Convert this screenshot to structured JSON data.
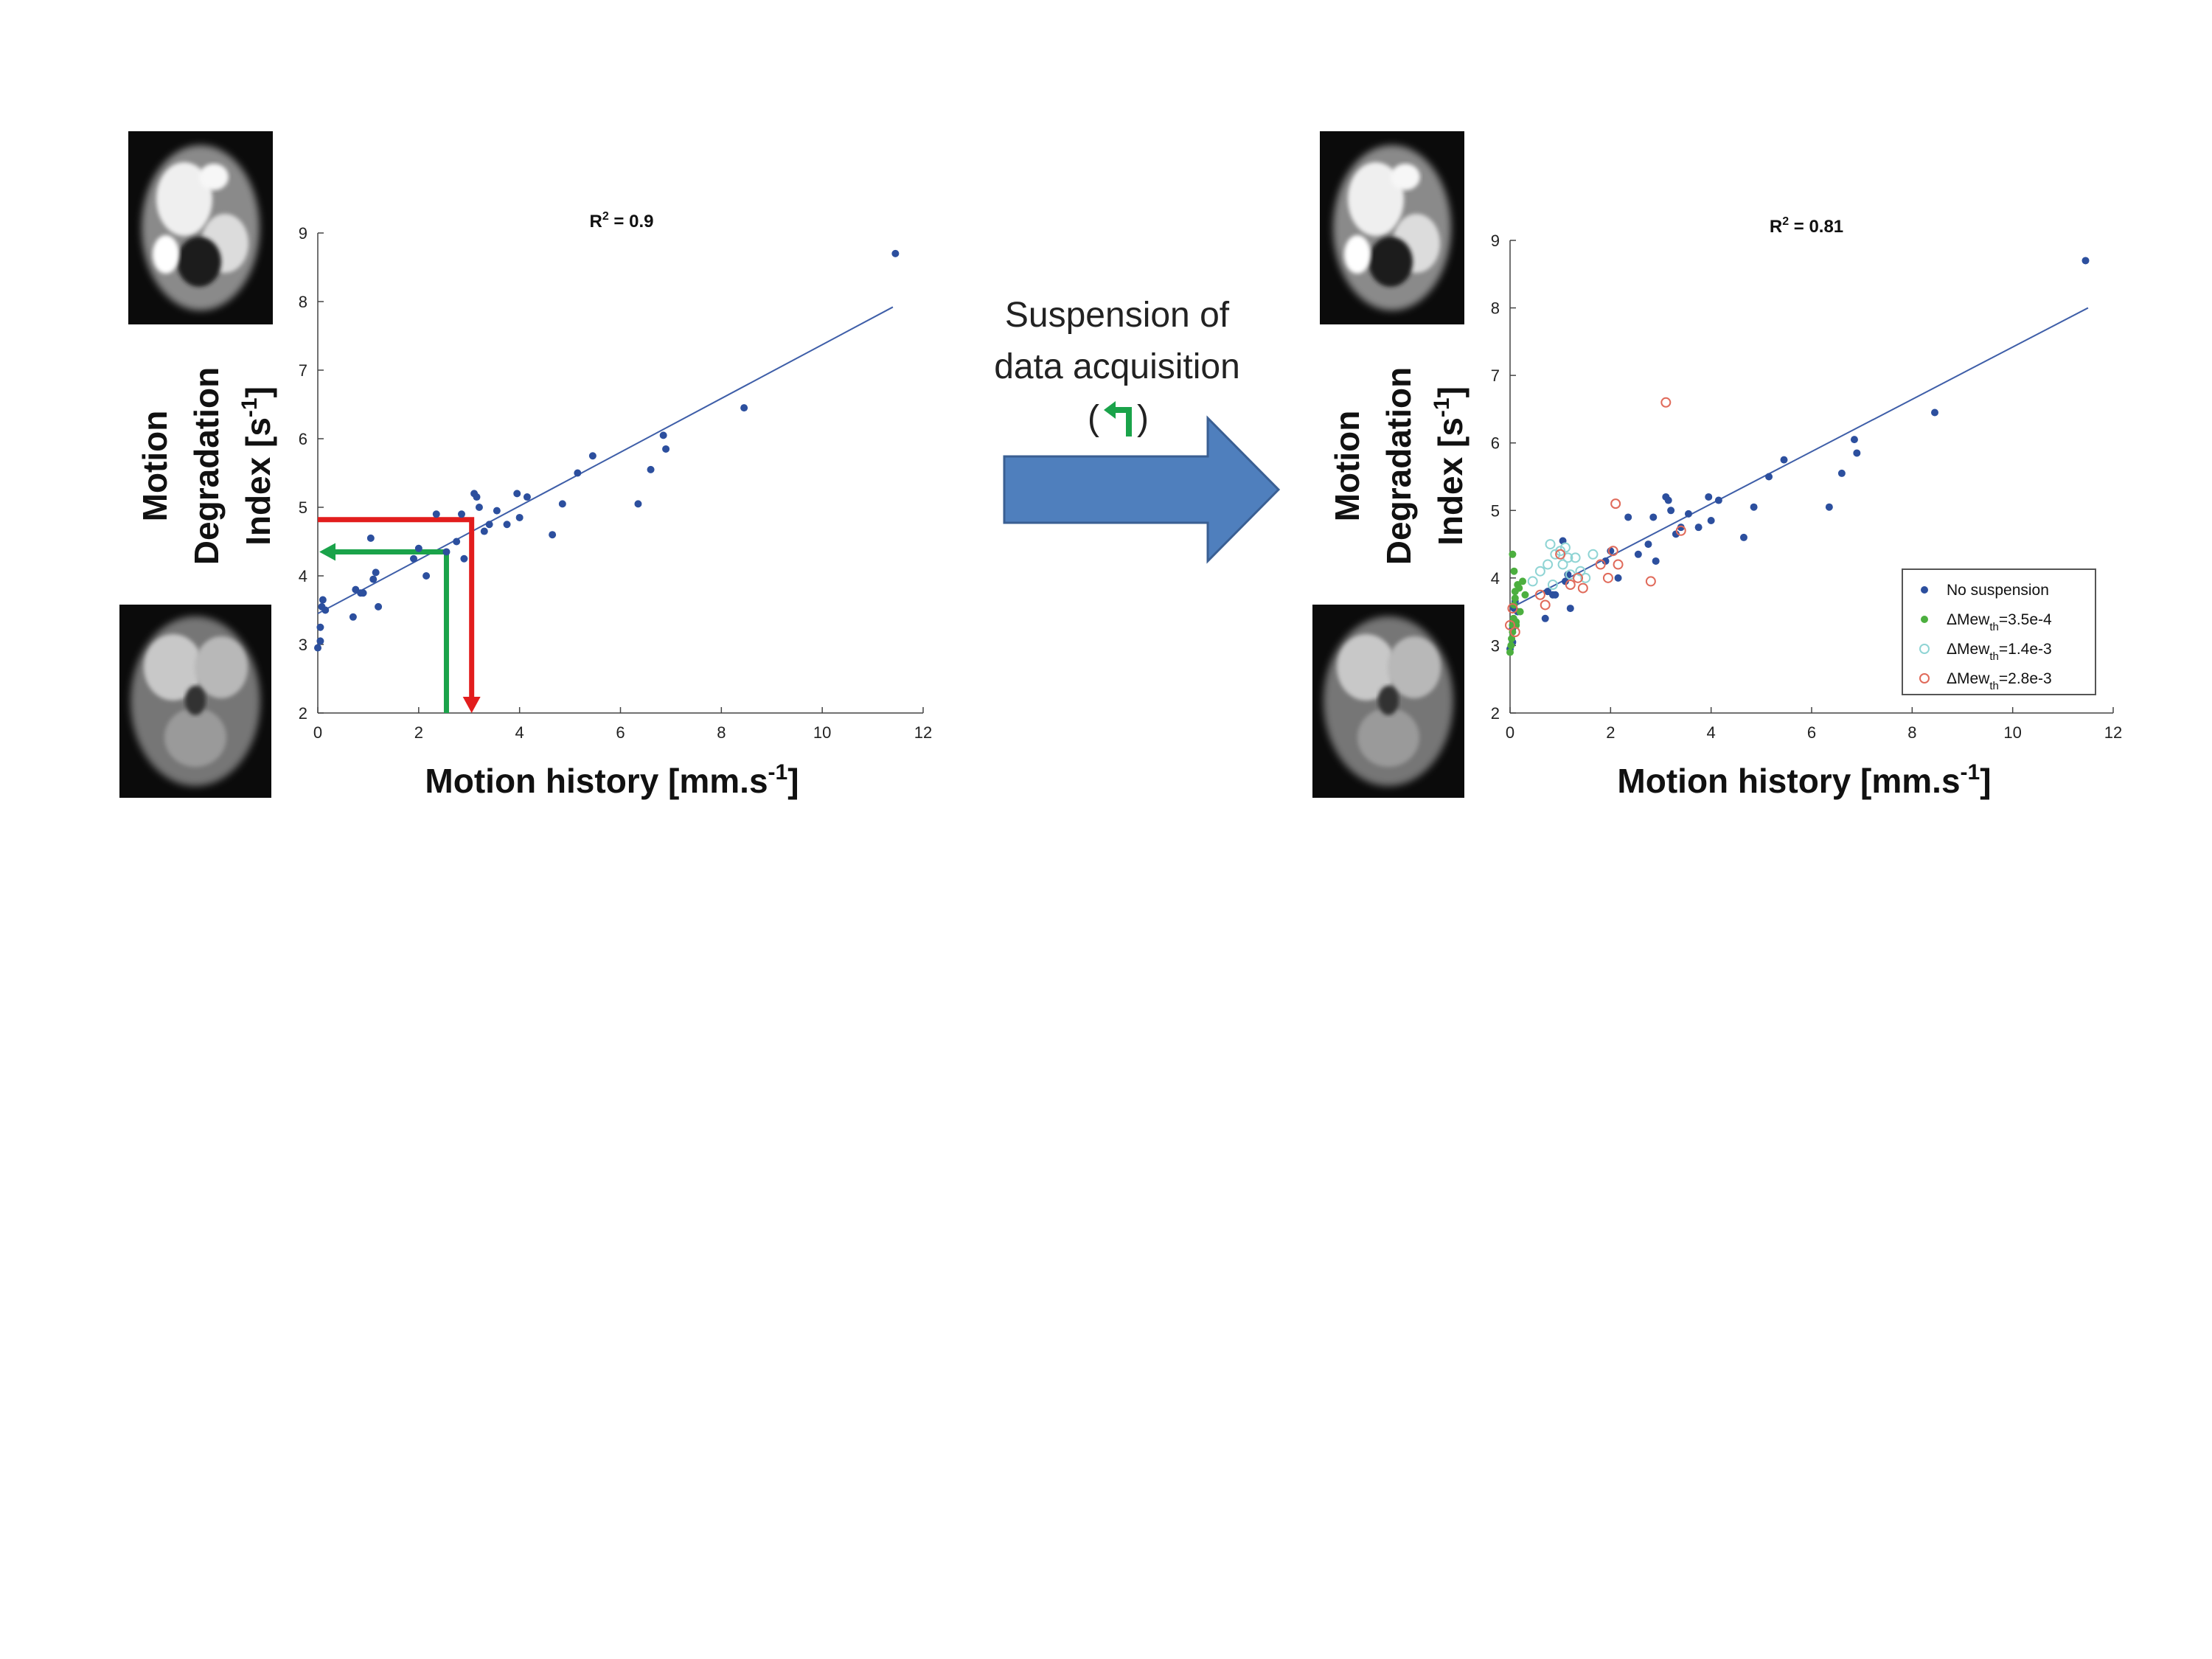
{
  "colors": {
    "series_blue": "#2c4f9e",
    "series_green": "#4caf3f",
    "series_cyan": "#8fd4d4",
    "series_red": "#e06a5a",
    "fit_line": "#3e5ea8",
    "arrow_red": "#e21d1d",
    "arrow_green": "#1aa34a",
    "big_arrow": "#4f7fbd"
  },
  "middle": {
    "line1": "Suspension of",
    "line2": "data acquisition",
    "paren_open": "(",
    "paren_close": ")",
    "icon": "green-turn-left-arrow-icon"
  },
  "chart_data": [
    {
      "type": "scatter",
      "title": "R² = 0.9",
      "title_main": "R",
      "title_sup": "2",
      "title_rest": " = 0.9",
      "xlabel": "Motion history [mm.s⁻¹]",
      "ylabel": "Motion Degradation Index [s⁻¹]",
      "xlabel_main": "Motion history [mm.s",
      "xlabel_sup": "-1",
      "xlabel_end": "]",
      "ylabel_line1": "Motion",
      "ylabel_line2": "Degradation",
      "ylabel_line3_main": "Index [s",
      "ylabel_line3_sup": "-1",
      "ylabel_line3_end": "]",
      "xlim": [
        0,
        12
      ],
      "ylim": [
        2,
        9
      ],
      "xticks": [
        "0",
        "2",
        "4",
        "6",
        "8",
        "10",
        "12"
      ],
      "yticks": [
        "2",
        "3",
        "4",
        "5",
        "6",
        "7",
        "8",
        "9"
      ],
      "fit_line": {
        "x": [
          0,
          11.4
        ],
        "y": [
          3.45,
          7.92
        ]
      },
      "annotations": {
        "red_arrow": {
          "x": 3.05,
          "y": 4.82
        },
        "green_arrow": {
          "x": 2.55,
          "y": 4.35
        }
      },
      "series": [
        {
          "color": "#2c4f9e",
          "style": "filled",
          "x": [
            0.0,
            0.05,
            0.05,
            0.08,
            0.1,
            0.15,
            0.7,
            0.75,
            0.85,
            0.9,
            1.05,
            1.1,
            1.15,
            1.2,
            1.9,
            2.0,
            2.15,
            2.35,
            2.55,
            2.75,
            2.85,
            2.9,
            3.1,
            3.15,
            3.2,
            3.3,
            3.4,
            3.55,
            3.75,
            3.95,
            4.0,
            4.15,
            4.65,
            4.85,
            5.15,
            5.45,
            6.35,
            6.6,
            6.85,
            6.9,
            8.45,
            11.45
          ],
          "y": [
            2.95,
            3.05,
            3.25,
            3.55,
            3.65,
            3.5,
            3.4,
            3.8,
            3.75,
            3.75,
            4.55,
            3.95,
            4.05,
            3.55,
            4.25,
            4.4,
            4.0,
            4.9,
            4.35,
            4.5,
            4.9,
            4.25,
            5.2,
            5.15,
            5.0,
            4.65,
            4.75,
            4.95,
            4.75,
            5.2,
            4.85,
            5.15,
            4.6,
            5.05,
            5.5,
            5.75,
            5.05,
            5.55,
            6.05,
            5.85,
            6.45,
            8.7
          ]
        }
      ]
    },
    {
      "type": "scatter",
      "title": "R² = 0.81",
      "title_main": "R",
      "title_sup": "2",
      "title_rest": " = 0.81",
      "xlabel": "Motion history [mm.s⁻¹]",
      "ylabel": "Motion Degradation Index [s⁻¹]",
      "xlabel_main": "Motion history [mm.s",
      "xlabel_sup": "-1",
      "xlabel_end": "]",
      "ylabel_line1": "Motion",
      "ylabel_line2": "Degradation",
      "ylabel_line3_main": "Index [s",
      "ylabel_line3_sup": "-1",
      "ylabel_line3_end": "]",
      "xlim": [
        0,
        12
      ],
      "ylim": [
        2,
        9
      ],
      "xticks": [
        "0",
        "2",
        "4",
        "6",
        "8",
        "10",
        "12"
      ],
      "yticks": [
        "2",
        "3",
        "4",
        "5",
        "6",
        "7",
        "8",
        "9"
      ],
      "fit_line": {
        "x": [
          0,
          11.5
        ],
        "y": [
          3.55,
          8.0
        ]
      },
      "legend_position": "bottom-right",
      "series": [
        {
          "name": "No suspension",
          "legend_main": "No suspension",
          "legend_sub": "",
          "legend_end": "",
          "color": "#2c4f9e",
          "style": "filled",
          "x": [
            0.0,
            0.05,
            0.05,
            0.08,
            0.1,
            0.15,
            0.7,
            0.75,
            0.85,
            0.9,
            1.05,
            1.1,
            1.15,
            1.2,
            1.9,
            2.0,
            2.15,
            2.35,
            2.55,
            2.75,
            2.85,
            2.9,
            3.1,
            3.15,
            3.2,
            3.3,
            3.4,
            3.55,
            3.75,
            3.95,
            4.0,
            4.15,
            4.65,
            4.85,
            5.15,
            5.45,
            6.35,
            6.6,
            6.85,
            6.9,
            8.45,
            11.45
          ],
          "y": [
            2.95,
            3.05,
            3.25,
            3.55,
            3.65,
            3.5,
            3.4,
            3.8,
            3.75,
            3.75,
            4.55,
            3.95,
            4.05,
            3.55,
            4.25,
            4.4,
            4.0,
            4.9,
            4.35,
            4.5,
            4.9,
            4.25,
            5.2,
            5.15,
            5.0,
            4.65,
            4.75,
            4.95,
            4.75,
            5.2,
            4.85,
            5.15,
            4.6,
            5.05,
            5.5,
            5.75,
            5.05,
            5.55,
            6.05,
            5.85,
            6.45,
            8.7
          ]
        },
        {
          "name": "ΔMew_th=3.5e-4",
          "legend_main": "ΔMew",
          "legend_sub": "th",
          "legend_end": "=3.5e-4",
          "color": "#4caf3f",
          "style": "filled",
          "x": [
            0.0,
            0.02,
            0.03,
            0.05,
            0.05,
            0.07,
            0.08,
            0.1,
            0.1,
            0.12,
            0.15,
            0.18,
            0.2,
            0.25,
            0.3,
            0.05,
            0.08,
            0.12
          ],
          "y": [
            2.9,
            3.0,
            3.1,
            3.2,
            3.3,
            3.4,
            3.6,
            3.7,
            3.8,
            3.35,
            3.9,
            3.85,
            3.5,
            3.95,
            3.75,
            4.35,
            4.1,
            3.3
          ]
        },
        {
          "name": "ΔMew_th=1.4e-3",
          "legend_main": "ΔMew",
          "legend_sub": "th",
          "legend_end": "=1.4e-3",
          "color": "#8fd4d4",
          "style": "open",
          "x": [
            0.45,
            0.6,
            0.75,
            0.8,
            0.85,
            0.9,
            1.0,
            1.05,
            1.1,
            1.15,
            1.2,
            1.3,
            1.4,
            1.5,
            1.65
          ],
          "y": [
            3.95,
            4.1,
            4.2,
            4.5,
            3.9,
            4.35,
            4.4,
            4.2,
            4.45,
            4.3,
            4.05,
            4.3,
            4.1,
            4.0,
            4.35
          ]
        },
        {
          "name": "ΔMew_th=2.8e-3",
          "legend_main": "ΔMew",
          "legend_sub": "th",
          "legend_end": "=2.8e-3",
          "color": "#e06a5a",
          "style": "open",
          "x": [
            0.0,
            0.05,
            0.1,
            0.6,
            0.7,
            1.0,
            1.2,
            1.35,
            1.45,
            1.8,
            1.95,
            2.05,
            2.1,
            2.15,
            2.8,
            3.1,
            3.4
          ],
          "y": [
            3.3,
            3.55,
            3.2,
            3.75,
            3.6,
            4.35,
            3.9,
            4.0,
            3.85,
            4.2,
            4.0,
            4.4,
            5.1,
            4.2,
            3.95,
            6.6,
            4.7
          ]
        }
      ]
    }
  ]
}
